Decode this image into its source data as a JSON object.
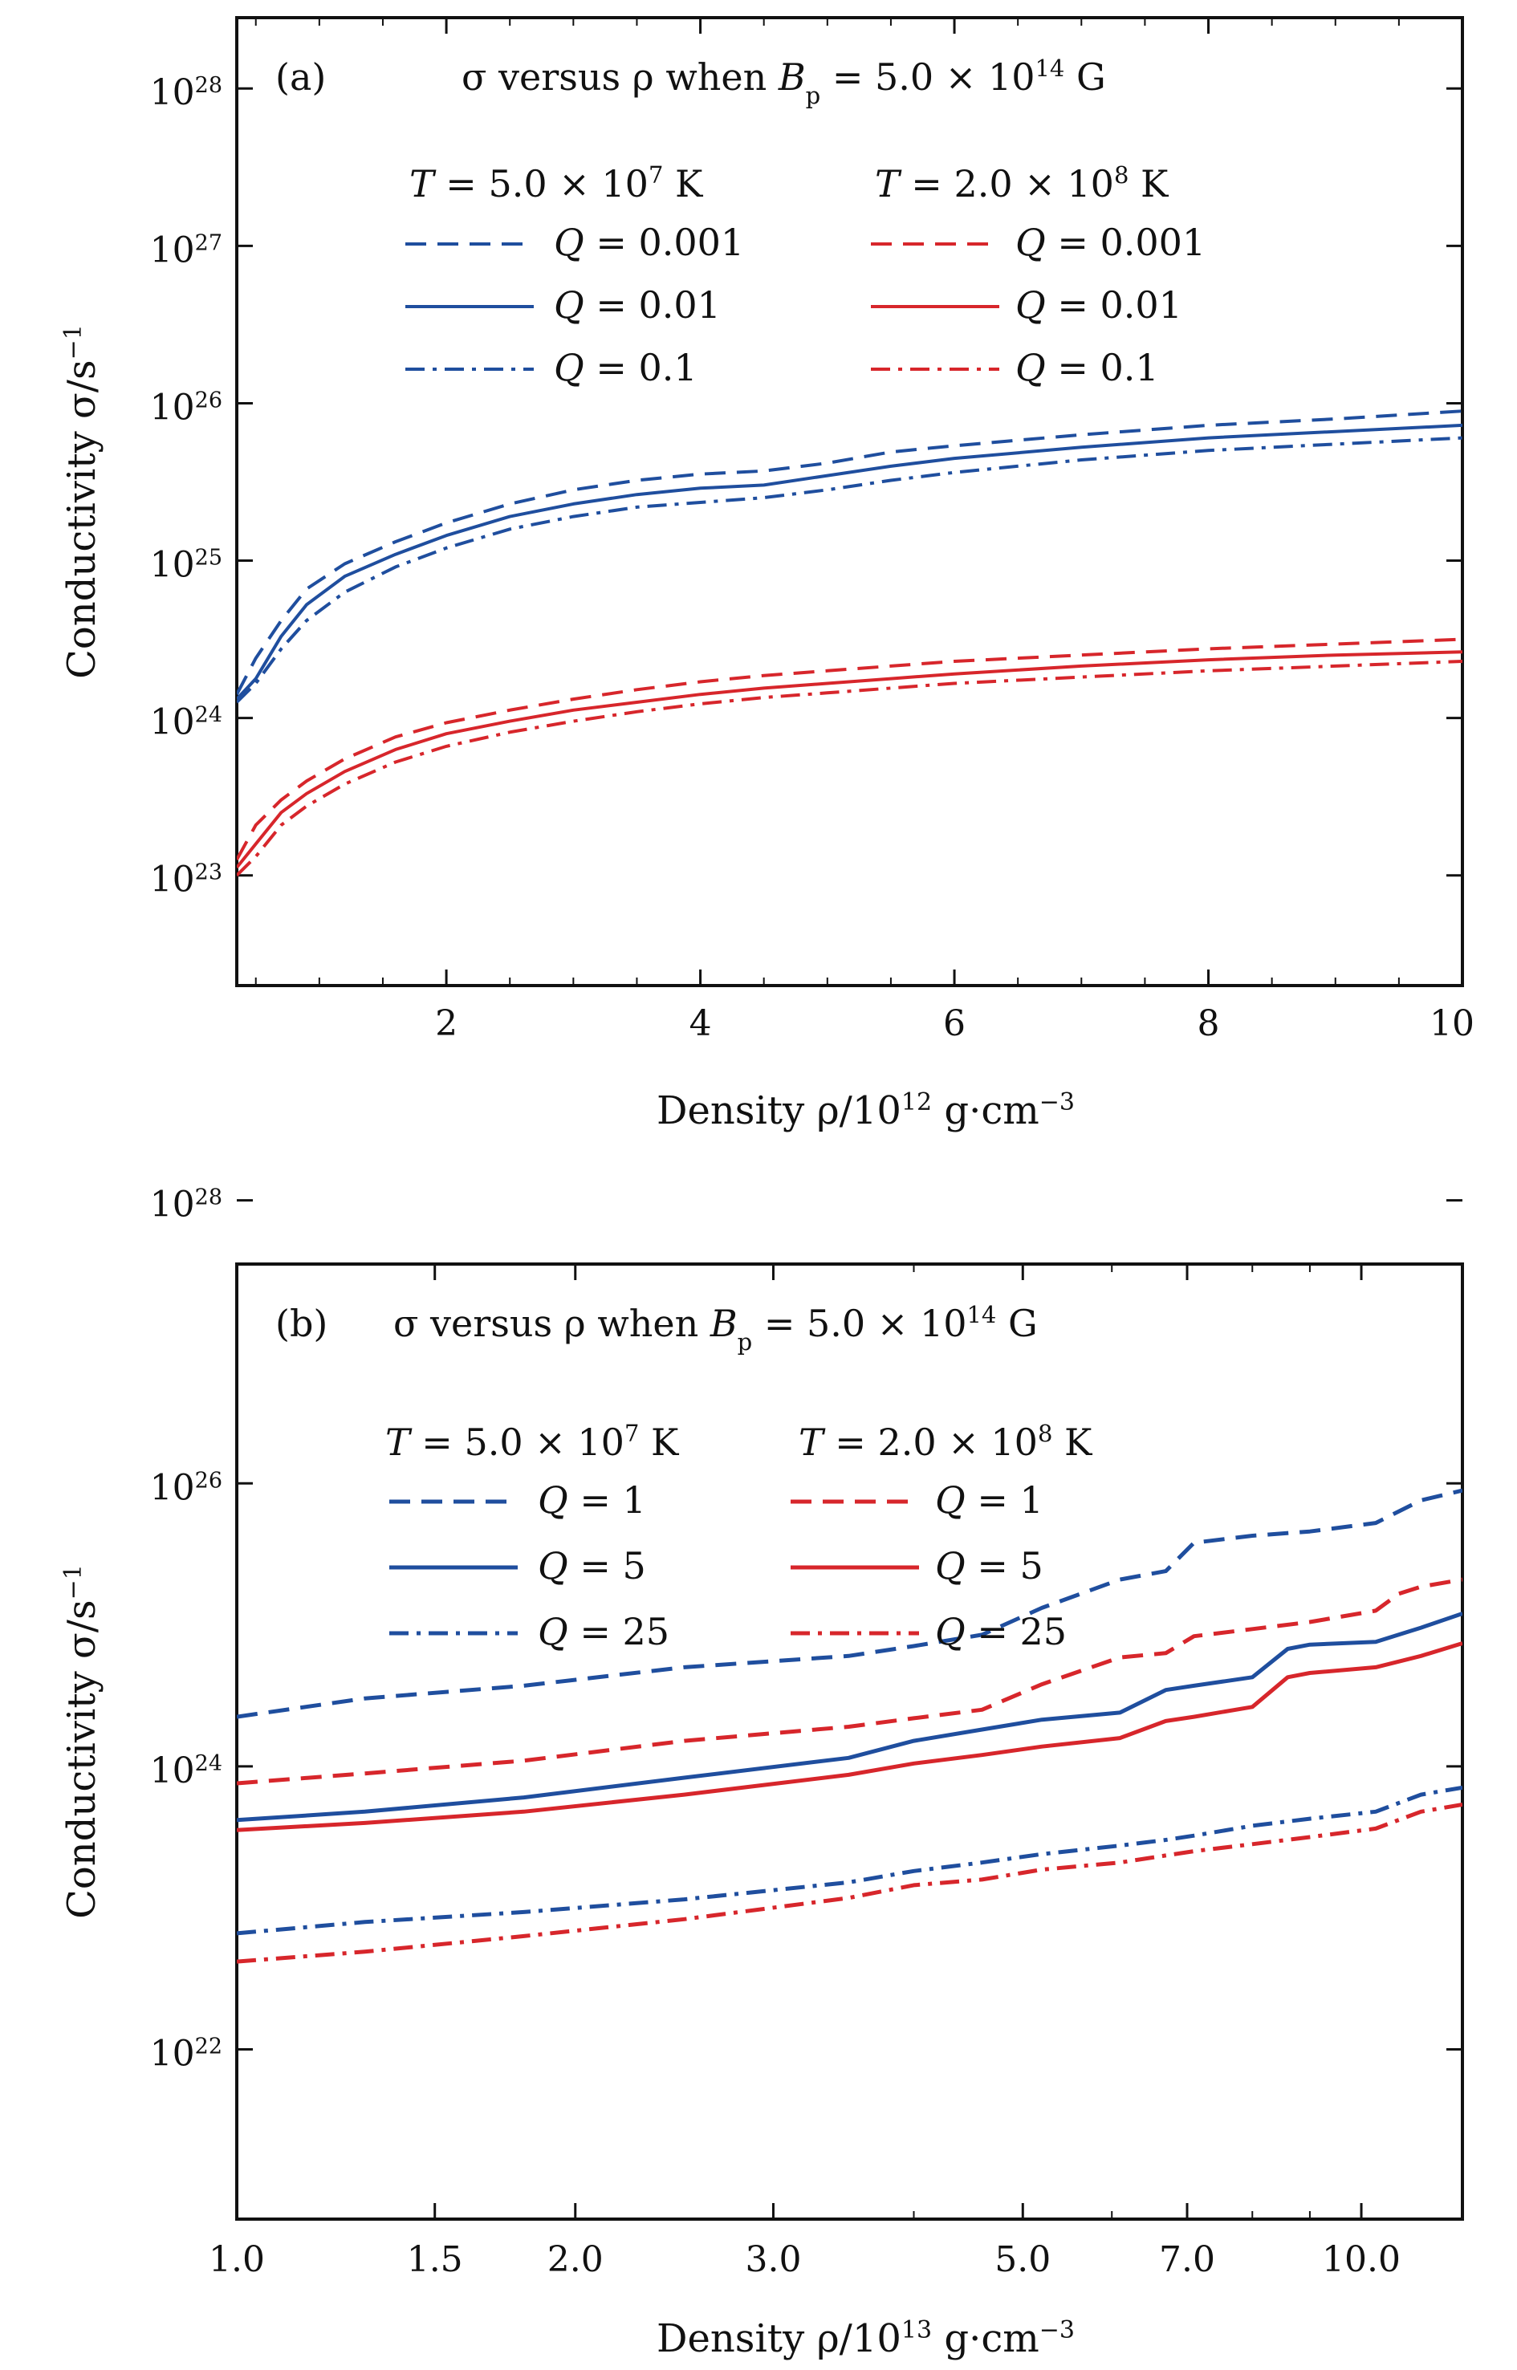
{
  "chart_data": [
    {
      "type": "line",
      "panel_label": "(a)",
      "title": {
        "prefix": "σ versus ρ  when  ",
        "bvar": "B",
        "bsub": "p",
        "bmid": " = 5.0 × 10",
        "bexp": "14",
        "bend": " G"
      },
      "xlabel": {
        "prefix": "Density  ρ/10",
        "exp": "12",
        "mid": " g·cm",
        "exp2": "−3"
      },
      "ylabel": {
        "prefix": "Conductivity  σ/s",
        "exp": "−1"
      },
      "x_scale": "linear",
      "y_scale": "log",
      "xlim": [
        0.35,
        10
      ],
      "ylim_log10": [
        22.3,
        28.45
      ],
      "x_ticks": [
        2,
        4,
        6,
        8,
        10
      ],
      "x_tick_labels": [
        "2",
        "4",
        "6",
        "8",
        "10"
      ],
      "y_ticks_log10": [
        23,
        24,
        25,
        26,
        27,
        28
      ],
      "y_tick_labels": [
        {
          "base": "10",
          "exp": "23"
        },
        {
          "base": "10",
          "exp": "24"
        },
        {
          "base": "10",
          "exp": "25"
        },
        {
          "base": "10",
          "exp": "26"
        },
        {
          "base": "10",
          "exp": "27"
        },
        {
          "base": "10",
          "exp": "28"
        }
      ],
      "legend": {
        "placement": "top",
        "headers": [
          {
            "prefix": "T",
            "eq": " = 5.0 × 10",
            "exp": "7",
            "unit": " K"
          },
          {
            "prefix": "T",
            "eq": " = 2.0 × 10",
            "exp": "8",
            "unit": " K"
          }
        ],
        "entries": [
          {
            "text": "Q = 0.001"
          },
          {
            "text": "Q = 0.01"
          },
          {
            "text": "Q = 0.1"
          },
          {
            "text": "Q = 0.001"
          },
          {
            "text": "Q = 0.01"
          },
          {
            "text": "Q = 0.1"
          }
        ]
      },
      "series": [
        {
          "group": 0,
          "row": 0,
          "color": "#1f4e9e",
          "style": "dashed",
          "x": [
            0.35,
            0.5,
            0.7,
            0.9,
            1.2,
            1.6,
            2.0,
            2.5,
            3.0,
            3.5,
            4.0,
            4.5,
            5.0,
            5.5,
            6.0,
            7.0,
            8.0,
            9.0,
            10.0
          ],
          "y": [
            24.15,
            24.38,
            24.62,
            24.82,
            24.98,
            25.12,
            25.24,
            25.36,
            25.45,
            25.51,
            25.55,
            25.57,
            25.62,
            25.69,
            25.73,
            25.8,
            25.86,
            25.9,
            25.95
          ]
        },
        {
          "group": 0,
          "row": 1,
          "color": "#1f4e9e",
          "style": "solid",
          "x": [
            0.35,
            0.5,
            0.7,
            0.9,
            1.2,
            1.6,
            2.0,
            2.5,
            3.0,
            3.5,
            4.0,
            4.5,
            5.0,
            5.5,
            6.0,
            7.0,
            8.0,
            9.0,
            10.0
          ],
          "y": [
            24.12,
            24.25,
            24.52,
            24.72,
            24.9,
            25.04,
            25.16,
            25.28,
            25.36,
            25.42,
            25.46,
            25.48,
            25.54,
            25.6,
            25.65,
            25.72,
            25.78,
            25.82,
            25.86
          ]
        },
        {
          "group": 0,
          "row": 2,
          "color": "#1f4e9e",
          "style": "dashdot",
          "x": [
            0.35,
            0.5,
            0.7,
            0.9,
            1.2,
            1.6,
            2.0,
            2.5,
            3.0,
            3.5,
            4.0,
            4.5,
            5.0,
            5.5,
            6.0,
            7.0,
            8.0,
            9.0,
            10.0
          ],
          "y": [
            24.1,
            24.22,
            24.44,
            24.62,
            24.8,
            24.96,
            25.08,
            25.2,
            25.28,
            25.34,
            25.37,
            25.4,
            25.45,
            25.51,
            25.56,
            25.64,
            25.7,
            25.74,
            25.78
          ]
        },
        {
          "group": 1,
          "row": 0,
          "color": "#d7262b",
          "style": "dashed",
          "x": [
            0.35,
            0.5,
            0.7,
            0.9,
            1.2,
            1.6,
            2.0,
            2.5,
            3.0,
            3.5,
            4.0,
            4.5,
            5.0,
            5.5,
            6.0,
            7.0,
            8.0,
            9.0,
            10.0
          ],
          "y": [
            23.1,
            23.32,
            23.48,
            23.6,
            23.74,
            23.88,
            23.97,
            24.05,
            24.12,
            24.18,
            24.23,
            24.27,
            24.3,
            24.33,
            24.36,
            24.4,
            24.44,
            24.47,
            24.5
          ]
        },
        {
          "group": 1,
          "row": 1,
          "color": "#d7262b",
          "style": "solid",
          "x": [
            0.35,
            0.5,
            0.7,
            0.9,
            1.2,
            1.6,
            2.0,
            2.5,
            3.0,
            3.5,
            4.0,
            4.5,
            5.0,
            5.5,
            6.0,
            7.0,
            8.0,
            9.0,
            10.0
          ],
          "y": [
            23.05,
            23.2,
            23.4,
            23.52,
            23.66,
            23.8,
            23.9,
            23.98,
            24.05,
            24.1,
            24.15,
            24.19,
            24.22,
            24.25,
            24.28,
            24.33,
            24.37,
            24.4,
            24.42
          ]
        },
        {
          "group": 1,
          "row": 2,
          "color": "#d7262b",
          "style": "dashdot",
          "x": [
            0.35,
            0.5,
            0.7,
            0.9,
            1.2,
            1.6,
            2.0,
            2.5,
            3.0,
            3.5,
            4.0,
            4.5,
            5.0,
            5.5,
            6.0,
            7.0,
            8.0,
            9.0,
            10.0
          ],
          "y": [
            23.0,
            23.12,
            23.32,
            23.44,
            23.58,
            23.72,
            23.82,
            23.91,
            23.98,
            24.04,
            24.09,
            24.13,
            24.16,
            24.19,
            24.22,
            24.26,
            24.3,
            24.33,
            24.36
          ]
        }
      ]
    },
    {
      "type": "line",
      "panel_label": "(b)",
      "title": {
        "prefix": "σ versus ρ  when  ",
        "bvar": "B",
        "bsub": "p",
        "bmid": " = 5.0 × 10",
        "bexp": "14",
        "bend": " G"
      },
      "xlabel": {
        "prefix": "Density  ρ/10",
        "exp": "13",
        "mid": " g·cm",
        "exp2": "−3"
      },
      "ylabel": {
        "prefix": "Conductivity  σ/s",
        "exp": "−1"
      },
      "x_scale": "log",
      "y_scale": "log",
      "xlim": [
        1.0,
        12.3
      ],
      "ylim_log10": [
        20.8,
        27.55
      ],
      "x_ticks": [
        1.0,
        1.5,
        2.0,
        3.0,
        5.0,
        7.0,
        10.0
      ],
      "x_tick_labels": [
        "1.0",
        "1.5",
        "2.0",
        "3.0",
        "5.0",
        "7.0",
        "10.0"
      ],
      "y_ticks_log10": [
        22,
        24,
        26,
        28
      ],
      "y_tick_labels": [
        {
          "base": "10",
          "exp": "22"
        },
        {
          "base": "10",
          "exp": "24"
        },
        {
          "base": "10",
          "exp": "26"
        },
        {
          "base": "10",
          "exp": "28"
        }
      ],
      "legend": {
        "placement": "top-left",
        "headers": [
          {
            "prefix": "T",
            "eq": " = 5.0 × 10",
            "exp": "7",
            "unit": " K"
          },
          {
            "prefix": "T",
            "eq": " = 2.0 × 10",
            "exp": "8",
            "unit": " K"
          }
        ],
        "entries": [
          {
            "text": "Q = 1"
          },
          {
            "text": "Q = 5"
          },
          {
            "text": "Q = 25"
          },
          {
            "text": "Q = 1"
          },
          {
            "text": "Q = 5"
          },
          {
            "text": "Q = 25"
          }
        ]
      },
      "series": [
        {
          "group": 0,
          "row": 0,
          "color": "#1f4e9e",
          "style": "dashed",
          "x": [
            1.0,
            1.3,
            1.8,
            2.5,
            3.5,
            4.0,
            4.6,
            5.2,
            6.1,
            6.7,
            7.1,
            8.0,
            9.0,
            10.3,
            11.3,
            12.3
          ],
          "y": [
            24.35,
            24.48,
            24.57,
            24.7,
            24.78,
            24.85,
            24.93,
            25.12,
            25.32,
            25.38,
            25.58,
            25.63,
            25.66,
            25.72,
            25.88,
            25.95
          ]
        },
        {
          "group": 0,
          "row": 1,
          "color": "#1f4e9e",
          "style": "solid",
          "x": [
            1.0,
            1.3,
            1.8,
            2.5,
            3.5,
            4.0,
            4.6,
            5.2,
            6.1,
            6.7,
            7.1,
            8.0,
            8.6,
            9.0,
            10.3,
            11.3,
            12.3
          ],
          "y": [
            23.62,
            23.68,
            23.78,
            23.92,
            24.06,
            24.18,
            24.26,
            24.33,
            24.38,
            24.54,
            24.57,
            24.63,
            24.83,
            24.86,
            24.88,
            24.98,
            25.08
          ]
        },
        {
          "group": 0,
          "row": 2,
          "color": "#1f4e9e",
          "style": "dashdot",
          "x": [
            1.0,
            1.3,
            1.8,
            2.5,
            3.5,
            4.0,
            4.6,
            5.2,
            6.1,
            6.7,
            7.1,
            8.0,
            9.0,
            10.3,
            11.3,
            12.3
          ],
          "y": [
            22.82,
            22.9,
            22.97,
            23.06,
            23.18,
            23.26,
            23.32,
            23.38,
            23.44,
            23.48,
            23.51,
            23.58,
            23.63,
            23.68,
            23.8,
            23.85
          ]
        },
        {
          "group": 1,
          "row": 0,
          "color": "#d7262b",
          "style": "dashed",
          "x": [
            1.0,
            1.3,
            1.8,
            2.5,
            3.5,
            4.0,
            4.6,
            5.2,
            6.1,
            6.7,
            7.1,
            8.0,
            9.0,
            10.3,
            10.8,
            11.3,
            12.3
          ],
          "y": [
            23.88,
            23.95,
            24.04,
            24.18,
            24.28,
            24.34,
            24.4,
            24.58,
            24.77,
            24.8,
            24.92,
            24.97,
            25.02,
            25.1,
            25.22,
            25.27,
            25.32
          ]
        },
        {
          "group": 1,
          "row": 1,
          "color": "#d7262b",
          "style": "solid",
          "x": [
            1.0,
            1.3,
            1.8,
            2.5,
            3.5,
            4.0,
            4.6,
            5.2,
            6.1,
            6.7,
            7.1,
            8.0,
            8.6,
            9.0,
            10.3,
            11.3,
            12.3
          ],
          "y": [
            23.55,
            23.6,
            23.68,
            23.8,
            23.94,
            24.02,
            24.08,
            24.14,
            24.2,
            24.32,
            24.35,
            24.42,
            24.63,
            24.66,
            24.7,
            24.78,
            24.87
          ]
        },
        {
          "group": 1,
          "row": 2,
          "color": "#d7262b",
          "style": "dashdot",
          "x": [
            1.0,
            1.3,
            1.8,
            2.5,
            3.5,
            4.0,
            4.6,
            5.2,
            6.1,
            6.7,
            7.1,
            8.0,
            9.0,
            10.3,
            11.3,
            12.3
          ],
          "y": [
            22.62,
            22.69,
            22.8,
            22.92,
            23.07,
            23.16,
            23.2,
            23.27,
            23.32,
            23.37,
            23.4,
            23.45,
            23.5,
            23.56,
            23.68,
            23.73
          ]
        }
      ]
    }
  ]
}
